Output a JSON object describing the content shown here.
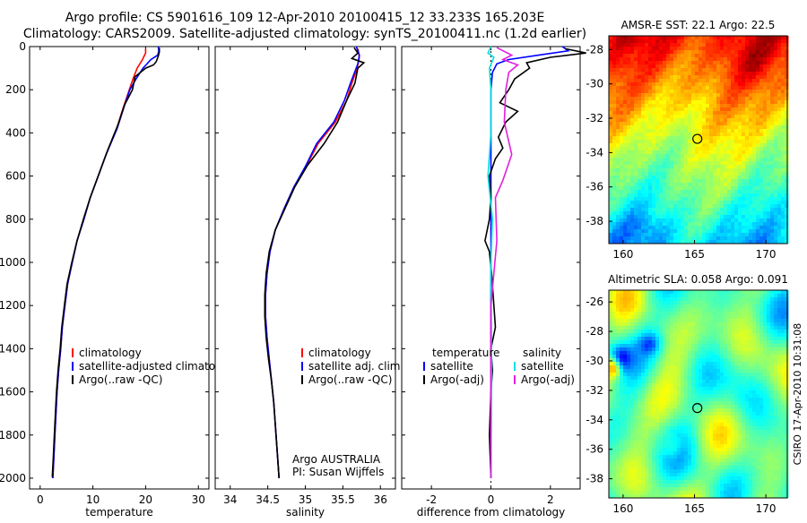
{
  "header": {
    "line1": "Argo profile: CS 5901616_109 12-Apr-2010 20100415_12 33.233S 165.203E",
    "line2": "Climatology: CARS2009. Satellite-adjusted climatology: synTS_20100411.nc (1.2d earlier)"
  },
  "side_stamp": "CSIRO 17-Apr-2010 10:31:08",
  "colors": {
    "red": "#ff0000",
    "blue": "#0000ff",
    "black": "#000000",
    "cyan": "#00e0e0",
    "magenta": "#e020e0"
  },
  "chart_data": [
    {
      "type": "line",
      "xlabel": "temperature",
      "ylabel": "",
      "xlim": [
        -2,
        32
      ],
      "ylim": [
        2050,
        0
      ],
      "xticks": [
        0,
        10,
        20,
        30
      ],
      "yticks": [
        0,
        200,
        400,
        600,
        800,
        1000,
        1200,
        1400,
        1600,
        1800,
        2000
      ],
      "legend": [
        "climatology",
        "satellite-adjusted climatology",
        "Argo(..raw -QC)"
      ],
      "legend_colors": [
        "#ff0000",
        "#0000ff",
        "#000000"
      ],
      "note": "",
      "series": [
        {
          "name": "climatology",
          "color": "#ff0000",
          "points": [
            [
              20.0,
              10
            ],
            [
              20.0,
              30
            ],
            [
              19.4,
              60
            ],
            [
              18.4,
              100
            ],
            [
              17.6,
              150
            ],
            [
              16.9,
              200
            ],
            [
              15.8,
              280
            ],
            [
              14.5,
              380
            ],
            [
              12.5,
              500
            ],
            [
              11.0,
              600
            ],
            [
              9.5,
              700
            ],
            [
              8.3,
              800
            ],
            [
              7.0,
              900
            ],
            [
              6.1,
              1000
            ],
            [
              5.2,
              1100
            ],
            [
              4.7,
              1200
            ],
            [
              4.2,
              1300
            ],
            [
              3.9,
              1400
            ],
            [
              3.5,
              1500
            ],
            [
              3.2,
              1600
            ],
            [
              3.0,
              1700
            ],
            [
              2.8,
              1800
            ],
            [
              2.6,
              1900
            ],
            [
              2.4,
              2000
            ]
          ]
        },
        {
          "name": "satellite-adjusted climatology",
          "color": "#0000ff",
          "points": [
            [
              22.4,
              0
            ],
            [
              22.5,
              20
            ],
            [
              22.3,
              40
            ],
            [
              21.0,
              60
            ],
            [
              19.5,
              100
            ],
            [
              18.2,
              150
            ],
            [
              17.0,
              200
            ],
            [
              15.9,
              280
            ],
            [
              14.6,
              380
            ],
            [
              12.5,
              500
            ],
            [
              11.0,
              600
            ],
            [
              9.5,
              700
            ],
            [
              8.3,
              800
            ],
            [
              7.0,
              900
            ],
            [
              6.1,
              1000
            ],
            [
              5.2,
              1100
            ],
            [
              4.7,
              1200
            ],
            [
              4.2,
              1300
            ],
            [
              3.9,
              1400
            ],
            [
              3.5,
              1500
            ],
            [
              3.2,
              1600
            ],
            [
              3.0,
              1700
            ],
            [
              2.8,
              1800
            ],
            [
              2.6,
              1900
            ],
            [
              2.4,
              2000
            ]
          ]
        },
        {
          "name": "Argo(..raw -QC)",
          "color": "#000000",
          "points": [
            [
              22.6,
              5
            ],
            [
              22.6,
              25
            ],
            [
              22.4,
              45
            ],
            [
              22.0,
              70
            ],
            [
              21.5,
              85
            ],
            [
              20.0,
              100
            ],
            [
              18.0,
              140
            ],
            [
              17.5,
              200
            ],
            [
              16.0,
              270
            ],
            [
              14.8,
              360
            ],
            [
              12.8,
              480
            ],
            [
              11.0,
              600
            ],
            [
              9.5,
              700
            ],
            [
              8.2,
              800
            ],
            [
              7.0,
              900
            ],
            [
              6.0,
              1000
            ],
            [
              5.1,
              1100
            ],
            [
              4.6,
              1200
            ],
            [
              4.1,
              1300
            ],
            [
              3.8,
              1400
            ],
            [
              3.4,
              1500
            ],
            [
              3.1,
              1600
            ],
            [
              2.9,
              1700
            ],
            [
              2.7,
              1800
            ],
            [
              2.5,
              1900
            ],
            [
              2.3,
              1995
            ]
          ]
        }
      ]
    },
    {
      "type": "line",
      "xlabel": "salinity",
      "ylabel": "",
      "xlim": [
        33.8,
        36.2
      ],
      "ylim": [
        2050,
        0
      ],
      "xticks": [
        34,
        34.5,
        35,
        35.5,
        36
      ],
      "yticks": [
        0,
        200,
        400,
        600,
        800,
        1000,
        1200,
        1400,
        1600,
        1800,
        2000
      ],
      "legend": [
        "climatology",
        "satellite adj. clim.",
        "Argo(..raw -QC)"
      ],
      "legend_colors": [
        "#ff0000",
        "#0000ff",
        "#000000"
      ],
      "note": "Argo AUSTRALIA\nPI: Susan Wijffels",
      "series": [
        {
          "name": "climatology",
          "color": "#ff0000",
          "points": [
            [
              35.7,
              10
            ],
            [
              35.72,
              50
            ],
            [
              35.69,
              100
            ],
            [
              35.62,
              170
            ],
            [
              35.55,
              250
            ],
            [
              35.4,
              350
            ],
            [
              35.17,
              450
            ],
            [
              35.02,
              550
            ],
            [
              34.85,
              650
            ],
            [
              34.72,
              750
            ],
            [
              34.6,
              850
            ],
            [
              34.53,
              950
            ],
            [
              34.49,
              1050
            ],
            [
              34.47,
              1150
            ],
            [
              34.47,
              1250
            ],
            [
              34.49,
              1350
            ],
            [
              34.52,
              1450
            ],
            [
              34.55,
              1550
            ],
            [
              34.58,
              1650
            ],
            [
              34.6,
              1750
            ],
            [
              34.62,
              1850
            ],
            [
              34.64,
              1950
            ],
            [
              34.65,
              2000
            ]
          ]
        },
        {
          "name": "satellite adj. clim.",
          "color": "#0000ff",
          "points": [
            [
              35.68,
              0
            ],
            [
              35.72,
              40
            ],
            [
              35.7,
              80
            ],
            [
              35.6,
              170
            ],
            [
              35.52,
              250
            ],
            [
              35.38,
              350
            ],
            [
              35.15,
              450
            ],
            [
              35.01,
              550
            ],
            [
              34.85,
              650
            ],
            [
              34.72,
              750
            ],
            [
              34.6,
              850
            ],
            [
              34.53,
              950
            ],
            [
              34.49,
              1050
            ],
            [
              34.47,
              1150
            ],
            [
              34.47,
              1250
            ],
            [
              34.49,
              1350
            ],
            [
              34.52,
              1450
            ],
            [
              34.55,
              1550
            ],
            [
              34.58,
              1650
            ],
            [
              34.6,
              1750
            ],
            [
              34.62,
              1850
            ],
            [
              34.64,
              1950
            ],
            [
              34.65,
              2000
            ]
          ]
        },
        {
          "name": "Argo(..raw -QC)",
          "color": "#000000",
          "points": [
            [
              35.65,
              5
            ],
            [
              35.7,
              30
            ],
            [
              35.62,
              55
            ],
            [
              35.78,
              75
            ],
            [
              35.7,
              100
            ],
            [
              35.66,
              170
            ],
            [
              35.55,
              250
            ],
            [
              35.43,
              350
            ],
            [
              35.25,
              450
            ],
            [
              35.03,
              550
            ],
            [
              34.86,
              650
            ],
            [
              34.73,
              750
            ],
            [
              34.6,
              850
            ],
            [
              34.52,
              950
            ],
            [
              34.48,
              1050
            ],
            [
              34.46,
              1150
            ],
            [
              34.46,
              1250
            ],
            [
              34.48,
              1350
            ],
            [
              34.51,
              1450
            ],
            [
              34.55,
              1550
            ],
            [
              34.58,
              1650
            ],
            [
              34.6,
              1750
            ],
            [
              34.62,
              1850
            ],
            [
              34.64,
              1950
            ],
            [
              34.65,
              2000
            ]
          ]
        }
      ]
    },
    {
      "type": "line",
      "xlabel": "difference from climatology",
      "ylabel": "",
      "xlim": [
        -3,
        3
      ],
      "ylim": [
        2050,
        0
      ],
      "xticks": [
        -2,
        0,
        2
      ],
      "yticks": [
        0,
        200,
        400,
        600,
        800,
        1000,
        1200,
        1400,
        1600,
        1800,
        2000
      ],
      "legend_left_title": "temperature",
      "legend_right_title": "salinity",
      "legend_left": [
        "satellite",
        "Argo(-adj)"
      ],
      "legend_right": [
        "satellite",
        "Argo(-adj)"
      ],
      "legend_left_colors": [
        "#0000ff",
        "#000000"
      ],
      "legend_right_colors": [
        "#00e0e0",
        "#e020e0"
      ],
      "series": [
        {
          "name": "temperature satellite",
          "color": "#0000ff",
          "points": [
            [
              2.4,
              0
            ],
            [
              2.6,
              20
            ],
            [
              1.6,
              40
            ],
            [
              0.6,
              60
            ],
            [
              0.2,
              80
            ],
            [
              0.05,
              120
            ],
            [
              0.0,
              200
            ],
            [
              0.0,
              2000
            ]
          ]
        },
        {
          "name": "temperature Argo(-adj)",
          "color": "#000000",
          "points": [
            [
              2.5,
              10
            ],
            [
              3.2,
              30
            ],
            [
              2.0,
              50
            ],
            [
              1.2,
              75
            ],
            [
              1.3,
              100
            ],
            [
              0.8,
              150
            ],
            [
              0.6,
              200
            ],
            [
              0.3,
              260
            ],
            [
              0.9,
              300
            ],
            [
              0.5,
              350
            ],
            [
              0.25,
              420
            ],
            [
              0.4,
              470
            ],
            [
              0.15,
              520
            ],
            [
              -0.05,
              600
            ],
            [
              0.0,
              700
            ],
            [
              -0.05,
              800
            ],
            [
              -0.2,
              900
            ],
            [
              -0.05,
              950
            ],
            [
              0.02,
              1050
            ],
            [
              0.1,
              1200
            ],
            [
              0.15,
              1300
            ],
            [
              0.0,
              1400
            ],
            [
              0.05,
              1500
            ],
            [
              0.0,
              1600
            ],
            [
              -0.05,
              1800
            ],
            [
              0.0,
              2000
            ]
          ]
        },
        {
          "name": "salinity satellite",
          "color": "#00e0e0",
          "points": [
            [
              0.0,
              0
            ],
            [
              -0.1,
              30
            ],
            [
              0.1,
              50
            ],
            [
              -0.05,
              100
            ],
            [
              0.0,
              200
            ],
            [
              0.0,
              400
            ],
            [
              -0.1,
              600
            ],
            [
              0.05,
              800
            ],
            [
              0.0,
              1000
            ],
            [
              0.02,
              1500
            ],
            [
              0.0,
              2000
            ]
          ]
        },
        {
          "name": "salinity Argo(-adj)",
          "color": "#e020e0",
          "points": [
            [
              0.2,
              5
            ],
            [
              0.7,
              40
            ],
            [
              0.4,
              60
            ],
            [
              0.9,
              85
            ],
            [
              0.6,
              120
            ],
            [
              0.5,
              200
            ],
            [
              0.45,
              350
            ],
            [
              0.7,
              500
            ],
            [
              0.4,
              620
            ],
            [
              0.15,
              700
            ],
            [
              0.2,
              900
            ],
            [
              0.0,
              1200
            ],
            [
              0.0,
              2000
            ]
          ]
        }
      ]
    },
    {
      "type": "heatmap",
      "title": "AMSR-E SST: 22.1 Argo: 22.5",
      "xlim": [
        159,
        171.5
      ],
      "ylim": [
        -39.3,
        -27.2
      ],
      "xticks": [
        160,
        165,
        170
      ],
      "yticks": [
        -28,
        -30,
        -32,
        -34,
        -36,
        -38
      ],
      "marker": [
        165.2,
        -33.2
      ],
      "colormap": "jet"
    },
    {
      "type": "heatmap",
      "title": "Altimetric SLA: 0.058 Argo: 0.091",
      "xlim": [
        159,
        171.5
      ],
      "ylim": [
        -39.3,
        -25.2
      ],
      "xticks": [
        160,
        165,
        170
      ],
      "yticks": [
        -26,
        -28,
        -30,
        -32,
        -34,
        -36,
        -38
      ],
      "marker": [
        165.2,
        -33.2
      ],
      "colormap": "jet"
    }
  ]
}
